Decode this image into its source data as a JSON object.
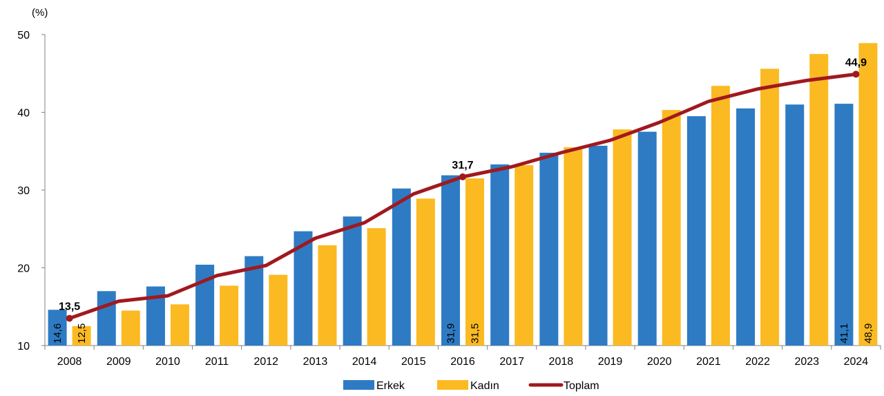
{
  "chart_data": {
    "type": "bar",
    "y_unit": "(%)",
    "ylim": [
      10,
      50
    ],
    "yticks": [
      10,
      20,
      30,
      40,
      50
    ],
    "grid": false,
    "legend_position": "bottom",
    "categories": [
      "2008",
      "2009",
      "2010",
      "2011",
      "2012",
      "2013",
      "2014",
      "2015",
      "2016",
      "2017",
      "2018",
      "2019",
      "2020",
      "2021",
      "2022",
      "2023",
      "2024"
    ],
    "series": [
      {
        "name": "Erkek",
        "kind": "bar",
        "color": "#2E7BC4",
        "values": [
          14.6,
          17.0,
          17.6,
          20.4,
          21.5,
          24.7,
          26.6,
          30.2,
          31.9,
          33.3,
          34.8,
          35.7,
          37.5,
          39.5,
          40.5,
          41.0,
          41.1
        ]
      },
      {
        "name": "Kadın",
        "kind": "bar",
        "color": "#FBBA22",
        "values": [
          12.5,
          14.5,
          15.3,
          17.7,
          19.1,
          22.9,
          25.1,
          28.9,
          31.5,
          33.2,
          35.5,
          37.8,
          40.3,
          43.4,
          45.6,
          47.5,
          48.9
        ]
      },
      {
        "name": "Toplam",
        "kind": "line",
        "color": "#A0191F",
        "values": [
          13.5,
          15.7,
          16.4,
          19.0,
          20.3,
          23.8,
          25.8,
          29.5,
          31.7,
          33.0,
          34.8,
          36.4,
          38.7,
          41.4,
          43.0,
          44.1,
          44.9
        ]
      }
    ],
    "point_labels": [
      {
        "series": 2,
        "index": 0,
        "text": "13,5"
      },
      {
        "series": 2,
        "index": 8,
        "text": "31,7"
      },
      {
        "series": 2,
        "index": 16,
        "text": "44,9"
      }
    ],
    "bar_labels": [
      {
        "series": 0,
        "index": 0,
        "text": "14,6"
      },
      {
        "series": 1,
        "index": 0,
        "text": "12,5"
      },
      {
        "series": 0,
        "index": 8,
        "text": "31,9"
      },
      {
        "series": 1,
        "index": 8,
        "text": "31,5"
      },
      {
        "series": 0,
        "index": 16,
        "text": "41,1"
      },
      {
        "series": 1,
        "index": 16,
        "text": "48,9"
      }
    ]
  }
}
